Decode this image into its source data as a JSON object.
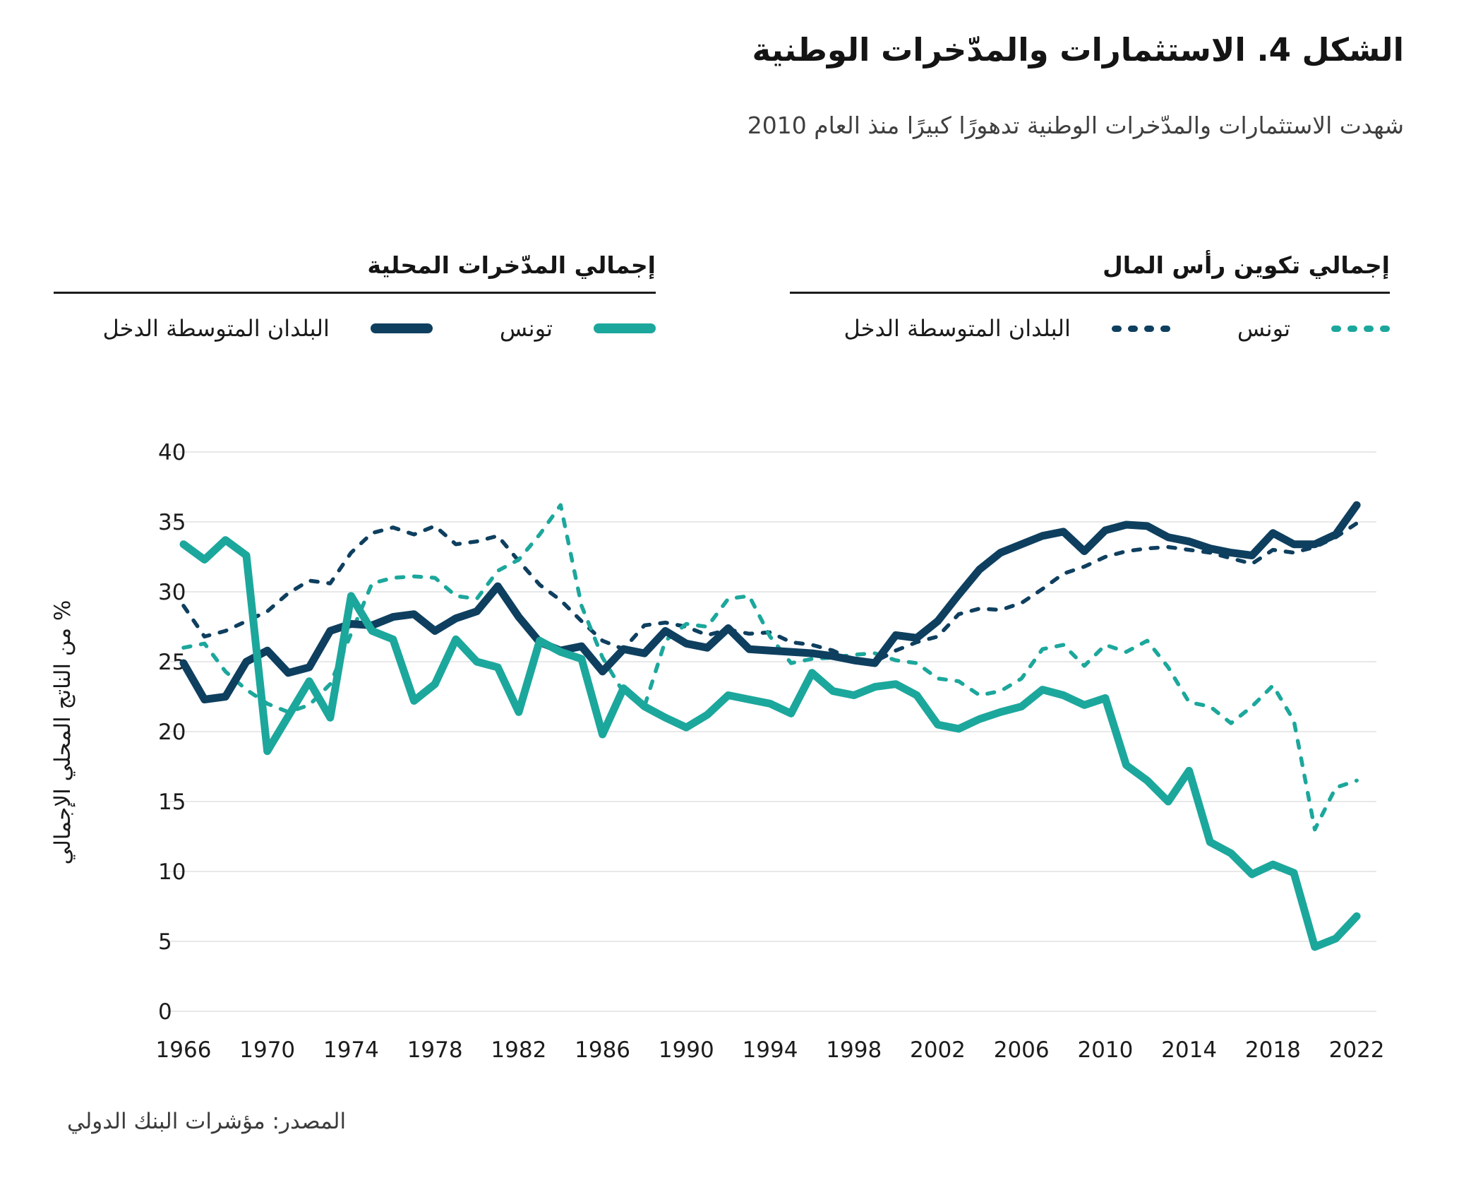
{
  "figure": {
    "title": "الشكل 4. الاستثمارات والمدّخرات الوطنية",
    "subtitle": "شهدت الاستثمارات والمدّخرات الوطنية تدهورًا كبيرًا منذ العام 2010",
    "source": "المصدر: مؤشرات البنك الدولي"
  },
  "colors": {
    "teal": "#1ca79c",
    "navy": "#0e3f5f",
    "grid": "#e8e8e8",
    "tick_text": "#1c1c1c"
  },
  "legend": {
    "groups": [
      {
        "id": "savings",
        "title": "إجمالي المدّخرات المحلية",
        "line_style": "solid",
        "items": [
          {
            "label": "تونس",
            "color": "#1ca79c"
          },
          {
            "label": "البلدان المتوسطة الدخل",
            "color": "#0e3f5f"
          }
        ]
      },
      {
        "id": "gcf",
        "title": "إجمالي تكوين رأس المال",
        "line_style": "dashed",
        "items": [
          {
            "label": "تونس",
            "color": "#1ca79c"
          },
          {
            "label": "البلدان المتوسطة الدخل",
            "color": "#0e3f5f"
          }
        ]
      }
    ]
  },
  "chart_data": {
    "type": "line",
    "title": "الشكل 4. الاستثمارات والمدّخرات الوطنية",
    "xlabel": "",
    "ylabel": "% من الناتج المحلي الإجمالي",
    "ylim": [
      0,
      40
    ],
    "grid": "horizontal",
    "x_start_year": 1966,
    "x_end_year": 2022,
    "x_ticks": [
      1966,
      1970,
      1974,
      1978,
      1982,
      1986,
      1990,
      1994,
      1998,
      2002,
      2006,
      2010,
      2014,
      2018,
      2022
    ],
    "y_ticks": [
      0,
      5,
      10,
      15,
      20,
      25,
      30,
      35,
      40
    ],
    "series": [
      {
        "id": "mic_capital_formation",
        "name": "البلدان المتوسطة الدخل — إجمالي تكوين رأس المال",
        "color": "#0e3f5f",
        "dash": true,
        "values": [
          29.0,
          26.8,
          27.2,
          27.9,
          28.6,
          29.9,
          30.8,
          30.6,
          32.8,
          34.2,
          34.6,
          34.1,
          34.7,
          33.4,
          33.6,
          34.0,
          32.2,
          30.5,
          29.4,
          27.9,
          26.5,
          25.9,
          27.6,
          27.8,
          27.5,
          26.9,
          27.3,
          27.0,
          27.1,
          26.4,
          26.2,
          25.8,
          25.1,
          25.0,
          25.8,
          26.4,
          26.8,
          28.4,
          28.8,
          28.7,
          29.2,
          30.2,
          31.3,
          31.8,
          32.5,
          32.9,
          33.1,
          33.2,
          33.0,
          32.8,
          32.4,
          32.0,
          33.0,
          32.8,
          33.2,
          33.9,
          34.9
        ]
      },
      {
        "id": "tunisia_capital_formation",
        "name": "تونس — إجمالي تكوين رأس المال",
        "color": "#1ca79c",
        "dash": true,
        "values": [
          26.0,
          26.3,
          24.3,
          23.0,
          22.0,
          21.4,
          21.9,
          23.4,
          27.0,
          30.6,
          31.0,
          31.1,
          31.0,
          29.7,
          29.5,
          31.5,
          32.3,
          34.1,
          36.2,
          29.0,
          25.3,
          22.8,
          21.8,
          26.5,
          27.7,
          27.5,
          29.5,
          29.7,
          26.8,
          24.9,
          25.2,
          25.3,
          25.5,
          25.6,
          25.1,
          24.9,
          23.8,
          23.6,
          22.6,
          22.9,
          23.8,
          25.9,
          26.2,
          24.7,
          26.2,
          25.7,
          26.5,
          24.6,
          22.1,
          21.8,
          20.6,
          21.8,
          23.3,
          20.8,
          13.0,
          16.0,
          16.5
        ]
      },
      {
        "id": "mic_savings",
        "name": "البلدان المتوسطة الدخل — إجمالي المدّخرات المحلية",
        "color": "#0e3f5f",
        "dash": false,
        "values": [
          24.9,
          22.3,
          22.5,
          25.0,
          25.8,
          24.2,
          24.6,
          27.2,
          27.7,
          27.6,
          28.2,
          28.4,
          27.2,
          28.1,
          28.6,
          30.4,
          28.2,
          26.4,
          25.8,
          26.1,
          24.3,
          25.9,
          25.6,
          27.2,
          26.3,
          26.0,
          27.4,
          25.9,
          25.8,
          25.7,
          25.6,
          25.4,
          25.1,
          24.9,
          26.9,
          26.7,
          27.9,
          29.8,
          31.6,
          32.8,
          33.4,
          34.0,
          34.3,
          32.9,
          34.4,
          34.8,
          34.7,
          33.9,
          33.6,
          33.1,
          32.8,
          32.6,
          34.2,
          33.4,
          33.4,
          34.1,
          36.2
        ]
      },
      {
        "id": "tunisia_savings",
        "name": "تونس — إجمالي المدّخرات المحلية",
        "color": "#1ca79c",
        "dash": false,
        "values": [
          33.4,
          32.3,
          33.7,
          32.6,
          18.6,
          21.1,
          23.6,
          21.0,
          29.7,
          27.2,
          26.6,
          22.2,
          23.4,
          26.6,
          25.0,
          24.6,
          21.4,
          26.5,
          25.7,
          25.2,
          19.8,
          23.1,
          21.8,
          21.0,
          20.3,
          21.2,
          22.6,
          22.3,
          22.0,
          21.3,
          24.2,
          22.9,
          22.6,
          23.2,
          23.4,
          22.6,
          20.5,
          20.2,
          20.9,
          21.4,
          21.8,
          23.0,
          22.6,
          21.9,
          22.4,
          17.6,
          16.5,
          15.0,
          17.2,
          12.1,
          11.3,
          9.8,
          10.5,
          9.9,
          4.6,
          5.2,
          6.8
        ]
      }
    ]
  }
}
